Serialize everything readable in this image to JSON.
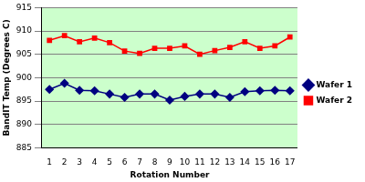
{
  "chart_data": {
    "type": "line",
    "x_label": "Rotation Number",
    "y_label": "BandIT Temp (Degrees C)",
    "categories": [
      "1",
      "2",
      "3",
      "4",
      "5",
      "6",
      "7",
      "8",
      "9",
      "10",
      "11",
      "12",
      "13",
      "14",
      "15",
      "16",
      "17"
    ],
    "series": [
      {
        "name": "Wafer 1",
        "color": "#000080",
        "marker": "diamond",
        "line_style": "solid",
        "values": [
          897.5,
          898.8,
          897.3,
          897.2,
          896.5,
          895.8,
          896.5,
          896.5,
          895.2,
          896.0,
          896.5,
          896.5,
          895.8,
          897.0,
          897.2,
          897.3,
          897.2
        ]
      },
      {
        "name": "Wafer 2",
        "color": "#ff0000",
        "marker": "square",
        "line_style": "solid",
        "values": [
          908.0,
          909.0,
          907.7,
          908.5,
          907.5,
          905.7,
          905.2,
          906.3,
          906.3,
          906.8,
          905.0,
          905.8,
          906.5,
          907.7,
          906.3,
          906.8,
          908.7
        ]
      }
    ],
    "ylim": [
      885,
      915
    ],
    "yticks": [
      885,
      890,
      895,
      900,
      905,
      910,
      915
    ],
    "grid": true,
    "legend": "right"
  }
}
